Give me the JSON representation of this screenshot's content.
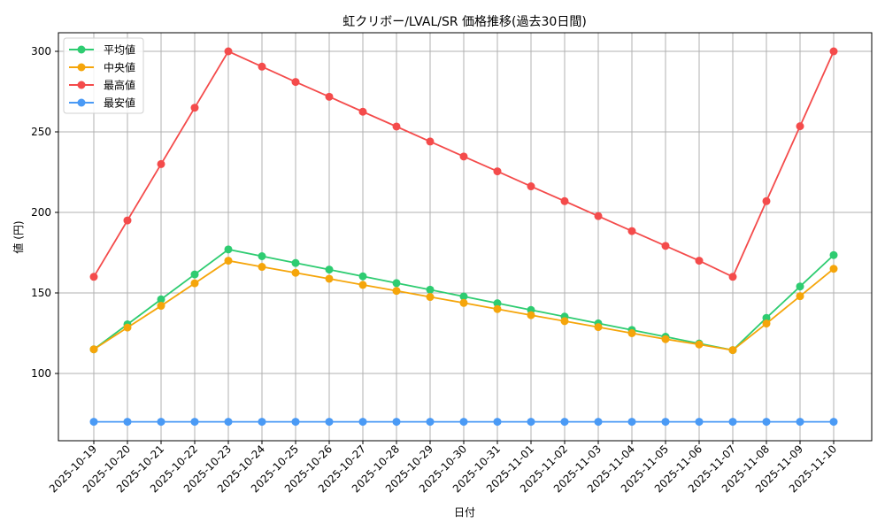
{
  "chart_data": {
    "type": "line",
    "title": "虹クリボー/LVAL/SR 価格推移(過去30日間)",
    "xlabel": "日付",
    "ylabel": "値 (円)",
    "ylim": [
      58.2,
      311.5
    ],
    "yticks": [
      100,
      150,
      200,
      250,
      300
    ],
    "grid": true,
    "legend_position": "upper left",
    "categories": [
      "2025-10-19",
      "2025-10-20",
      "2025-10-21",
      "2025-10-22",
      "2025-10-23",
      "2025-10-24",
      "2025-10-25",
      "2025-10-26",
      "2025-10-27",
      "2025-10-28",
      "2025-10-29",
      "2025-10-30",
      "2025-10-31",
      "2025-11-01",
      "2025-11-02",
      "2025-11-03",
      "2025-11-04",
      "2025-11-05",
      "2025-11-06",
      "2025-11-07",
      "2025-11-08",
      "2025-11-09",
      "2025-11-10"
    ],
    "series": [
      {
        "name": "平均値",
        "color": "#2ecc71",
        "values": [
          115,
          130.5,
          146,
          161.5,
          177,
          172.8,
          168.6,
          164.5,
          160.3,
          156.1,
          152,
          147.8,
          143.6,
          139.4,
          135.3,
          131.1,
          127,
          122.8,
          118.6,
          114.5,
          134.5,
          154,
          173.5
        ]
      },
      {
        "name": "中央値",
        "color": "#f5a50a",
        "values": [
          115,
          128.5,
          142,
          156,
          170,
          166.2,
          162.5,
          158.8,
          155,
          151.3,
          147.5,
          143.8,
          140,
          136.2,
          132.5,
          128.8,
          125,
          121.3,
          118,
          114.5,
          131,
          148,
          165
        ]
      },
      {
        "name": "最高値",
        "color": "#f44b4b",
        "values": [
          160,
          195,
          230,
          265,
          300,
          290.5,
          281,
          271.8,
          262.5,
          253.3,
          244,
          234.7,
          225.5,
          216.2,
          207,
          197.7,
          188.4,
          179.2,
          170,
          160,
          207,
          253.5,
          300
        ]
      },
      {
        "name": "最安値",
        "color": "#4a9af5",
        "values": [
          70,
          70,
          70,
          70,
          70,
          70,
          70,
          70,
          70,
          70,
          70,
          70,
          70,
          70,
          70,
          70,
          70,
          70,
          70,
          70,
          70,
          70,
          70
        ]
      }
    ]
  }
}
